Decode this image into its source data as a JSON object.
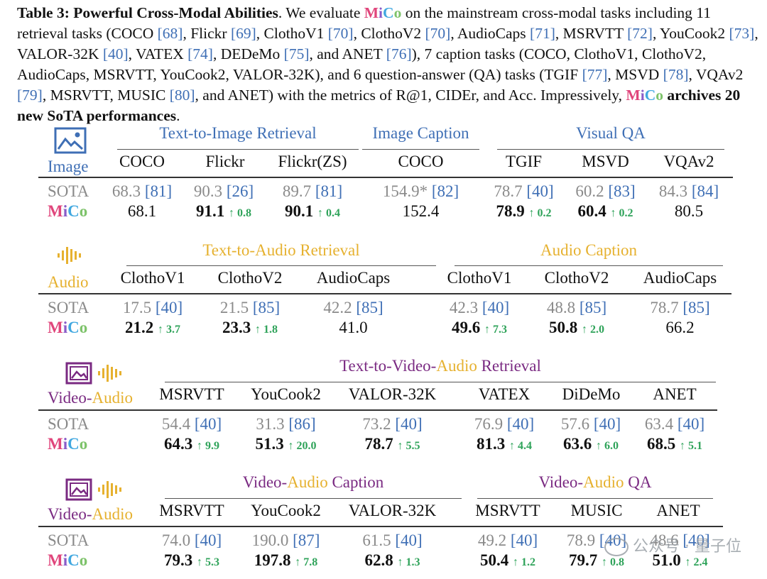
{
  "caption": {
    "lead": "Table 3: Powerful Cross-Modal Abilities",
    "t1": ". We evaluate ",
    "mico": [
      "M",
      "i",
      "C",
      "o"
    ],
    "t2": " on the mainstream cross-modal tasks including 11 retrieval tasks (COCO ",
    "r68": "[68]",
    "t3": ", Flickr ",
    "r69": "[69]",
    "t4": ", ClothoV1 ",
    "r70a": "[70]",
    "t5": ", ClothoV2 ",
    "r70b": "[70]",
    "t6": ", AudioCaps ",
    "r71": "[71]",
    "t7": ", MSRVTT ",
    "r72": "[72]",
    "t8": ", YouCook2 ",
    "r73": "[73]",
    "t9": ", VALOR-32K ",
    "r40": "[40]",
    "t10": ", VATEX ",
    "r74": "[74]",
    "t11": ", DEDeMo ",
    "r75": "[75]",
    "t12": ", and ANET ",
    "r76": "[76]",
    "t13": "), 7 caption tasks (COCO, ClothoV1, ClothoV2, AudioCaps, MSRVTT, YouCook2, VALOR-32K), and 6 question-answer (QA) tasks (TGIF ",
    "r77": "[77]",
    "t14": ", MSVD ",
    "r78": "[78]",
    "t15": ", VQAv2 ",
    "r79": "[79]",
    "t16": ", MSRVTT, MUSIC ",
    "r80": "[80]",
    "t17": ", and ANET) with the metrics of R@1, CIDEr, and Acc. Impressively, ",
    "t18": "archives 20 new SoTA performances",
    "t19": "."
  },
  "labels": {
    "sota": "SOTA"
  },
  "image": {
    "modality": "Image",
    "groups": [
      "Text-to-Image Retrieval",
      "Image Caption",
      "Visual QA"
    ],
    "cols": [
      "COCO",
      "Flickr",
      "Flickr(ZS)",
      "COCO",
      "TGIF",
      "MSVD",
      "VQAv2"
    ],
    "sota": [
      [
        "68.3",
        "[81]"
      ],
      [
        "90.3",
        "[26]"
      ],
      [
        "89.7",
        "[81]"
      ],
      [
        "154.9*",
        "[82]"
      ],
      [
        "78.7",
        "[40]"
      ],
      [
        "60.2",
        "[83]"
      ],
      [
        "84.3",
        "[84]"
      ]
    ],
    "mico": [
      [
        "68.1",
        ""
      ],
      [
        "91.1",
        "↑ 0.8"
      ],
      [
        "90.1",
        "↑ 0.4"
      ],
      [
        "152.4",
        ""
      ],
      [
        "78.9",
        "↑ 0.2"
      ],
      [
        "60.4",
        "↑ 0.2"
      ],
      [
        "80.5",
        ""
      ]
    ]
  },
  "audio": {
    "modality": "Audio",
    "groups": [
      "Text-to-Audio Retrieval",
      "Audio Caption"
    ],
    "cols": [
      "ClothoV1",
      "ClothoV2",
      "AudioCaps",
      "ClothoV1",
      "ClothoV2",
      "AudioCaps"
    ],
    "sota": [
      [
        "17.5",
        "[40]"
      ],
      [
        "21.5",
        "[85]"
      ],
      [
        "42.2",
        "[85]"
      ],
      [
        "42.3",
        "[40]"
      ],
      [
        "48.8",
        "[85]"
      ],
      [
        "78.7",
        "[85]"
      ]
    ],
    "mico": [
      [
        "21.2",
        "↑ 3.7"
      ],
      [
        "23.3",
        "↑ 1.8"
      ],
      [
        "41.0",
        ""
      ],
      [
        "49.6",
        "↑ 7.3"
      ],
      [
        "50.8",
        "↑ 2.0"
      ],
      [
        "66.2",
        ""
      ]
    ]
  },
  "va1": {
    "mod_a": "Video-",
    "mod_b": "Audio",
    "g_a": "Text-to-Video-",
    "g_b": "Audio",
    "g_c": " Retrieval",
    "cols": [
      "MSRVTT",
      "YouCook2",
      "VALOR-32K",
      "VATEX",
      "DiDeMo",
      "ANET"
    ],
    "sota": [
      [
        "54.4",
        "[40]"
      ],
      [
        "31.3",
        "[86]"
      ],
      [
        "73.2",
        "[40]"
      ],
      [
        "76.9",
        "[40]"
      ],
      [
        "57.6",
        "[40]"
      ],
      [
        "63.4",
        "[40]"
      ]
    ],
    "mico": [
      [
        "64.3",
        "↑ 9.9"
      ],
      [
        "51.3",
        "↑ 20.0"
      ],
      [
        "78.7",
        "↑ 5.5"
      ],
      [
        "81.3",
        "↑ 4.4"
      ],
      [
        "63.6",
        "↑ 6.0"
      ],
      [
        "68.5",
        "↑ 5.1"
      ]
    ]
  },
  "va2": {
    "mod_a": "Video-",
    "mod_b": "Audio",
    "g1_a": "Video-",
    "g1_b": "Audio",
    "g1_c": " Caption",
    "g2_a": "Video-",
    "g2_b": "Audio",
    "g2_c": " QA",
    "cols": [
      "MSRVTT",
      "YouCook2",
      "VALOR-32K",
      "MSRVTT",
      "MUSIC",
      "ANET"
    ],
    "sota": [
      [
        "74.0",
        "[40]"
      ],
      [
        "190.0",
        "[87]"
      ],
      [
        "61.5",
        "[40]"
      ],
      [
        "49.2",
        "[40]"
      ],
      [
        "78.9",
        "[40]"
      ],
      [
        "48.6",
        "[40]"
      ]
    ],
    "mico": [
      [
        "79.3",
        "↑ 5.3"
      ],
      [
        "197.8",
        "↑ 7.8"
      ],
      [
        "62.8",
        "↑ 1.3"
      ],
      [
        "50.4",
        "↑ 1.2"
      ],
      [
        "79.7",
        "↑ 0.8"
      ],
      [
        "51.0",
        "↑ 2.4"
      ]
    ]
  },
  "watermark": "公众号 · 量子位",
  "colors": {
    "blue": "#3f6fb5",
    "gold": "#e6b12f",
    "purple": "#7a2a82",
    "green": "#2fa35a",
    "grey": "#8a8a8a"
  }
}
